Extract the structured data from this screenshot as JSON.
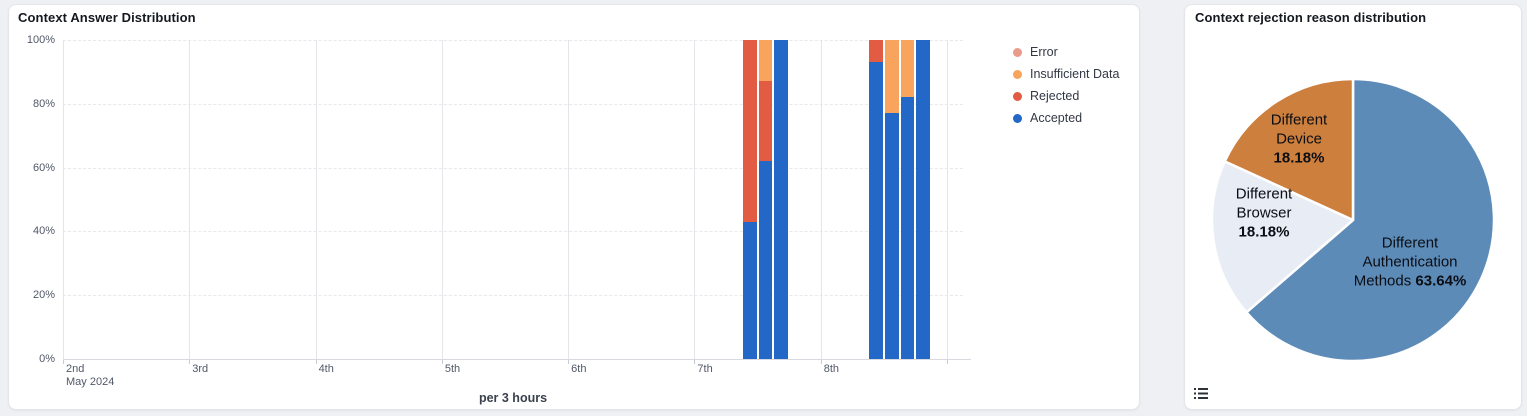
{
  "page": {
    "background": "#eef0f3"
  },
  "answer_card": {
    "title": "Context Answer Distribution",
    "chart_data": {
      "type": "bar",
      "stacked": true,
      "unit": "percent",
      "title": "Context Answer Distribution",
      "xlabel": "per 3 hours",
      "ylabel": "",
      "ylim": [
        0,
        100
      ],
      "grid": true,
      "legend_position": "right",
      "y_ticks": [
        "0%",
        "20%",
        "40%",
        "60%",
        "80%",
        "100%"
      ],
      "x_ticks": [
        "2nd",
        "3rd",
        "4th",
        "5th",
        "6th",
        "7th",
        "8th"
      ],
      "x_tick_sublabel": "May 2024",
      "series": [
        {
          "key": "accepted",
          "name": "Accepted",
          "color": "#2368c6"
        },
        {
          "key": "rejected",
          "name": "Rejected",
          "color": "#e25c44"
        },
        {
          "key": "insufficient_data",
          "name": "Insufficient Data",
          "color": "#f9a45c"
        },
        {
          "key": "error",
          "name": "Error",
          "color": "#ea9c8b"
        }
      ],
      "bars": [
        {
          "day": "7th",
          "time": "09:00",
          "accepted": 43,
          "rejected": 57,
          "insufficient_data": 0,
          "error": 0
        },
        {
          "day": "7th",
          "time": "12:00",
          "accepted": 62,
          "rejected": 25,
          "insufficient_data": 13,
          "error": 0
        },
        {
          "day": "7th",
          "time": "15:00",
          "accepted": 100,
          "rejected": 0,
          "insufficient_data": 0,
          "error": 0
        },
        {
          "day": "8th",
          "time": "09:00",
          "accepted": 93,
          "rejected": 7,
          "insufficient_data": 0,
          "error": 0
        },
        {
          "day": "8th",
          "time": "12:00",
          "accepted": 77,
          "rejected": 0,
          "insufficient_data": 23,
          "error": 0
        },
        {
          "day": "8th",
          "time": "15:00",
          "accepted": 82,
          "rejected": 0,
          "insufficient_data": 18,
          "error": 0
        },
        {
          "day": "8th",
          "time": "18:00",
          "accepted": 100,
          "rejected": 0,
          "insufficient_data": 0,
          "error": 0
        }
      ]
    }
  },
  "rejection_card": {
    "title": "Context rejection reason distribution",
    "chart_data": {
      "type": "pie",
      "legend": false,
      "slices": [
        {
          "name": "Different Authentication Methods",
          "value": 63.64,
          "pct_label": "63.64%",
          "color": "#5d8bb8",
          "label_lines": [
            "Different",
            "Authentication",
            "Methods {pct}"
          ]
        },
        {
          "name": "Different Browser",
          "value": 18.18,
          "pct_label": "18.18%",
          "color": "#e8ecf4",
          "label_lines": [
            "Different",
            "Browser",
            "{pct}"
          ]
        },
        {
          "name": "Different Device",
          "value": 18.18,
          "pct_label": "18.18%",
          "color": "#cd7f3e",
          "label_lines": [
            "Different",
            "Device",
            "{pct}"
          ]
        }
      ]
    },
    "toolbox_icon": "list-icon"
  }
}
